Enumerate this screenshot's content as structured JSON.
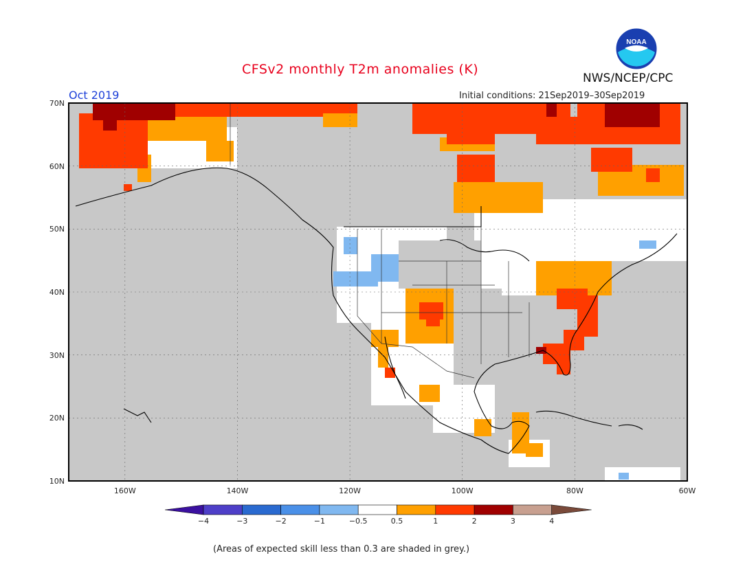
{
  "header": {
    "title": "CFSv2 monthly T2m anomalies (K)",
    "month": "Oct 2019",
    "initial_conditions": "Initial conditions: 21Sep2019–30Sep2019",
    "agency": "NWS/NCEP/CPC",
    "logo_text": "NOAA"
  },
  "map": {
    "lon_range": [
      -170,
      -60
    ],
    "lat_range": [
      10,
      70
    ],
    "lat_labels": [
      "70N",
      "60N",
      "50N",
      "40N",
      "30N",
      "20N",
      "10N"
    ],
    "lon_labels": [
      "160W",
      "140W",
      "120W",
      "100W",
      "80W",
      "60W"
    ],
    "background_note": "grey = skill < 0.3"
  },
  "colorbar": {
    "labels": [
      "−4",
      "−3",
      "−2",
      "−1",
      "−0.5",
      "0.5",
      "1",
      "2",
      "3",
      "4"
    ],
    "colors": [
      "#3b10a0",
      "#4e3fc8",
      "#2a6ad0",
      "#4a90e8",
      "#80b8f0",
      "#ffffff",
      "#ffa000",
      "#ff3a00",
      "#a00000",
      "#c8a090",
      "#7a4a3a"
    ]
  },
  "footnote": "(Areas of expected skill less than 0.3 are shaded in grey.)"
}
